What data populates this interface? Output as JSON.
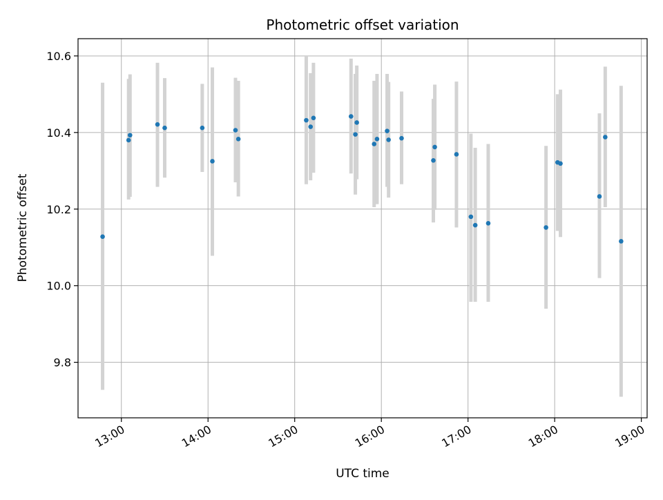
{
  "chart_data": {
    "type": "scatter",
    "title": "Photometric offset variation",
    "xlabel": "UTC time",
    "ylabel": "Photometric offset",
    "x_ticks": [
      "13:00",
      "14:00",
      "15:00",
      "16:00",
      "17:00",
      "18:00",
      "19:00"
    ],
    "y_ticks": [
      "9.8",
      "10.0",
      "10.2",
      "10.4",
      "10.6"
    ],
    "xlim": [
      "12:30",
      "19:04"
    ],
    "ylim": [
      9.655,
      10.645
    ],
    "grid": true,
    "legend": "none",
    "colors": {
      "marker": "#1f77b4",
      "error_bar": "#d3d3d3",
      "grid": "#b0b0b0"
    },
    "points": [
      {
        "x": "12:47",
        "y": 10.128,
        "lo": 9.728,
        "hi": 10.53
      },
      {
        "x": "13:05",
        "y": 10.38,
        "lo": 10.225,
        "hi": 10.54
      },
      {
        "x": "13:06",
        "y": 10.393,
        "lo": 10.232,
        "hi": 10.552
      },
      {
        "x": "13:25",
        "y": 10.421,
        "lo": 10.258,
        "hi": 10.582
      },
      {
        "x": "13:30",
        "y": 10.412,
        "lo": 10.282,
        "hi": 10.542
      },
      {
        "x": "13:56",
        "y": 10.412,
        "lo": 10.297,
        "hi": 10.527
      },
      {
        "x": "14:03",
        "y": 10.325,
        "lo": 10.078,
        "hi": 10.57
      },
      {
        "x": "14:19",
        "y": 10.406,
        "lo": 10.27,
        "hi": 10.543
      },
      {
        "x": "14:21",
        "y": 10.383,
        "lo": 10.233,
        "hi": 10.535
      },
      {
        "x": "15:08",
        "y": 10.432,
        "lo": 10.265,
        "hi": 10.6
      },
      {
        "x": "15:11",
        "y": 10.415,
        "lo": 10.275,
        "hi": 10.555
      },
      {
        "x": "15:13",
        "y": 10.438,
        "lo": 10.295,
        "hi": 10.582
      },
      {
        "x": "15:39",
        "y": 10.442,
        "lo": 10.293,
        "hi": 10.593
      },
      {
        "x": "15:42",
        "y": 10.395,
        "lo": 10.238,
        "hi": 10.553
      },
      {
        "x": "15:43",
        "y": 10.426,
        "lo": 10.278,
        "hi": 10.575
      },
      {
        "x": "15:55",
        "y": 10.37,
        "lo": 10.205,
        "hi": 10.535
      },
      {
        "x": "15:57",
        "y": 10.383,
        "lo": 10.213,
        "hi": 10.553
      },
      {
        "x": "16:04",
        "y": 10.404,
        "lo": 10.258,
        "hi": 10.553
      },
      {
        "x": "16:05",
        "y": 10.381,
        "lo": 10.23,
        "hi": 10.532
      },
      {
        "x": "16:14",
        "y": 10.385,
        "lo": 10.265,
        "hi": 10.507
      },
      {
        "x": "16:36",
        "y": 10.327,
        "lo": 10.165,
        "hi": 10.488
      },
      {
        "x": "16:37",
        "y": 10.362,
        "lo": 10.198,
        "hi": 10.525
      },
      {
        "x": "16:52",
        "y": 10.343,
        "lo": 10.152,
        "hi": 10.533
      },
      {
        "x": "17:02",
        "y": 10.18,
        "lo": 9.958,
        "hi": 10.397
      },
      {
        "x": "17:05",
        "y": 10.158,
        "lo": 9.958,
        "hi": 10.36
      },
      {
        "x": "17:14",
        "y": 10.163,
        "lo": 9.958,
        "hi": 10.37
      },
      {
        "x": "17:54",
        "y": 10.152,
        "lo": 9.94,
        "hi": 10.365
      },
      {
        "x": "18:02",
        "y": 10.322,
        "lo": 10.143,
        "hi": 10.5
      },
      {
        "x": "18:04",
        "y": 10.319,
        "lo": 10.127,
        "hi": 10.512
      },
      {
        "x": "18:31",
        "y": 10.233,
        "lo": 10.02,
        "hi": 10.45
      },
      {
        "x": "18:35",
        "y": 10.388,
        "lo": 10.205,
        "hi": 10.572
      },
      {
        "x": "18:46",
        "y": 10.116,
        "lo": 9.71,
        "hi": 10.522
      }
    ]
  }
}
